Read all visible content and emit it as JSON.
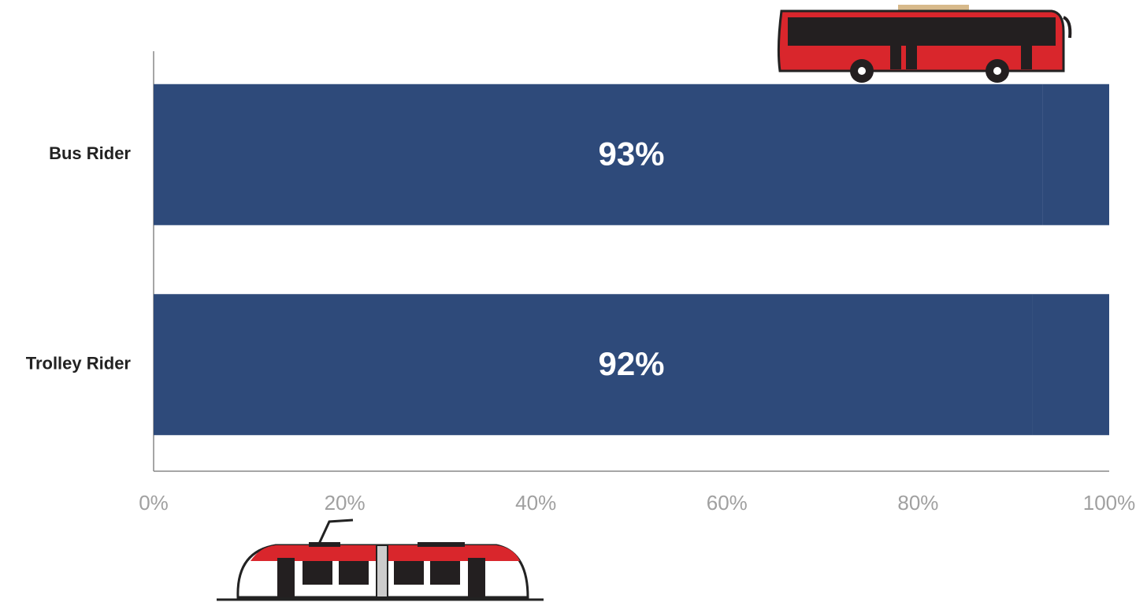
{
  "chart_data": {
    "type": "stacked_barh",
    "categories": [
      "Bus Rider",
      "Trolley Rider"
    ],
    "series": [
      {
        "color": "#2e4a7a",
        "values": [
          93,
          92
        ],
        "value_labels": [
          "93%",
          "92%"
        ]
      },
      {
        "color": "#2e4a7a",
        "values": [
          7,
          8
        ]
      }
    ],
    "xlim": [
      0,
      100
    ],
    "xticks": [
      {
        "value": 0,
        "label": "0%"
      },
      {
        "value": 20,
        "label": "20%"
      },
      {
        "value": 40,
        "label": "40%"
      },
      {
        "value": 60,
        "label": "60%"
      },
      {
        "value": 80,
        "label": "80%"
      },
      {
        "value": 100,
        "label": "100%"
      }
    ],
    "grid": false
  }
}
